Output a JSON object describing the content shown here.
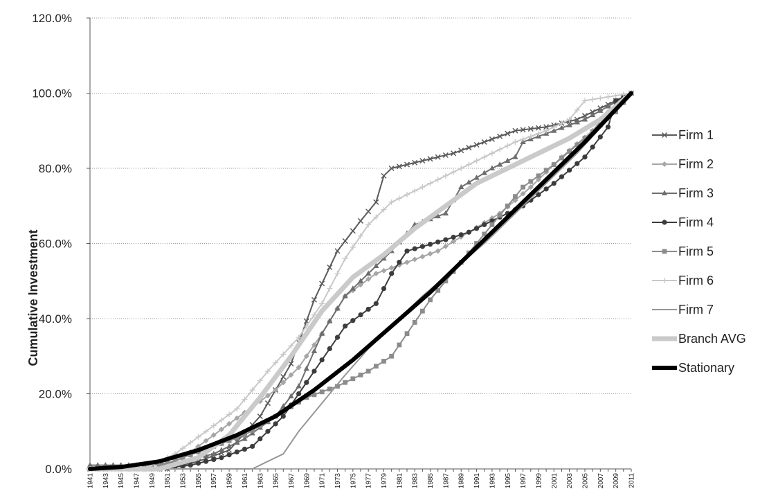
{
  "chart_data": {
    "type": "line",
    "title": "",
    "xlabel": "",
    "ylabel": "Cumulative Investment",
    "x_start": 1941,
    "x_end": 2011,
    "x_tick_labels": [
      "1941",
      "1943",
      "1945",
      "1947",
      "1949",
      "1951",
      "1953",
      "1955",
      "1957",
      "1959",
      "1961",
      "1963",
      "1965",
      "1967",
      "1969",
      "1971",
      "1973",
      "1975",
      "1977",
      "1979",
      "1981",
      "1983",
      "1985",
      "1987",
      "1989",
      "1991",
      "1993",
      "1995",
      "1997",
      "1999",
      "2001",
      "2003",
      "2005",
      "2007",
      "2009",
      "2011"
    ],
    "y_tick_labels": [
      "0.0%",
      "20.0%",
      "40.0%",
      "60.0%",
      "80.0%",
      "100.0%",
      "120.0%"
    ],
    "ylim": [
      0,
      120
    ],
    "grid": "horizontal",
    "legend": "right",
    "series": [
      {
        "name": "Firm 1",
        "color": "#5a5a5a",
        "width": 2,
        "marker": "x",
        "points": [
          [
            1941,
            0
          ],
          [
            1951,
            0
          ],
          [
            1955,
            2
          ],
          [
            1959,
            5
          ],
          [
            1963,
            14
          ],
          [
            1967,
            28
          ],
          [
            1970,
            45
          ],
          [
            1973,
            58
          ],
          [
            1976,
            66
          ],
          [
            1978,
            71
          ],
          [
            1979,
            78
          ],
          [
            1980,
            80
          ],
          [
            1984,
            82
          ],
          [
            1988,
            84
          ],
          [
            1992,
            87
          ],
          [
            1996,
            90
          ],
          [
            2000,
            91
          ],
          [
            2004,
            93
          ],
          [
            2008,
            97
          ],
          [
            2011,
            100
          ]
        ]
      },
      {
        "name": "Firm 2",
        "color": "#a6a6a6",
        "width": 2,
        "marker": "diamond",
        "points": [
          [
            1941,
            0
          ],
          [
            1950,
            0
          ],
          [
            1953,
            3
          ],
          [
            1957,
            9
          ],
          [
            1961,
            15
          ],
          [
            1965,
            21
          ],
          [
            1968,
            27
          ],
          [
            1971,
            36
          ],
          [
            1974,
            46
          ],
          [
            1978,
            52
          ],
          [
            1982,
            55
          ],
          [
            1986,
            58
          ],
          [
            1990,
            63
          ],
          [
            1994,
            68
          ],
          [
            1998,
            75
          ],
          [
            2002,
            83
          ],
          [
            2006,
            90
          ],
          [
            2008,
            95
          ],
          [
            2011,
            100
          ]
        ]
      },
      {
        "name": "Firm 3",
        "color": "#6e6e6e",
        "width": 2,
        "marker": "triangle",
        "points": [
          [
            1941,
            1
          ],
          [
            1949,
            1
          ],
          [
            1953,
            2
          ],
          [
            1957,
            4
          ],
          [
            1961,
            8
          ],
          [
            1965,
            14
          ],
          [
            1968,
            22
          ],
          [
            1971,
            36
          ],
          [
            1974,
            46
          ],
          [
            1977,
            52
          ],
          [
            1980,
            58
          ],
          [
            1983,
            65
          ],
          [
            1987,
            68
          ],
          [
            1989,
            75
          ],
          [
            1993,
            80
          ],
          [
            1996,
            83
          ],
          [
            1997,
            87
          ],
          [
            2001,
            90
          ],
          [
            2005,
            93
          ],
          [
            2011,
            100
          ]
        ]
      },
      {
        "name": "Firm 4",
        "color": "#3c3c3c",
        "width": 2,
        "marker": "circle",
        "points": [
          [
            1941,
            0
          ],
          [
            1950,
            0
          ],
          [
            1954,
            1
          ],
          [
            1958,
            3
          ],
          [
            1962,
            6
          ],
          [
            1966,
            14
          ],
          [
            1969,
            23
          ],
          [
            1971,
            29
          ],
          [
            1974,
            38
          ],
          [
            1978,
            44
          ],
          [
            1980,
            52
          ],
          [
            1982,
            58
          ],
          [
            1987,
            61
          ],
          [
            1990,
            63
          ],
          [
            1993,
            66
          ],
          [
            1997,
            70
          ],
          [
            2001,
            76
          ],
          [
            2005,
            83
          ],
          [
            2008,
            91
          ],
          [
            2009,
            98
          ],
          [
            2011,
            100
          ]
        ]
      },
      {
        "name": "Firm 5",
        "color": "#8c8c8c",
        "width": 2,
        "marker": "square",
        "points": [
          [
            1941,
            0
          ],
          [
            1949,
            0
          ],
          [
            1953,
            3
          ],
          [
            1957,
            6
          ],
          [
            1961,
            9
          ],
          [
            1965,
            14
          ],
          [
            1969,
            19
          ],
          [
            1973,
            22
          ],
          [
            1977,
            26
          ],
          [
            1980,
            30
          ],
          [
            1982,
            36
          ],
          [
            1985,
            45
          ],
          [
            1989,
            55
          ],
          [
            1993,
            65
          ],
          [
            1997,
            75
          ],
          [
            2001,
            81
          ],
          [
            2005,
            88
          ],
          [
            2009,
            95
          ],
          [
            2011,
            100
          ]
        ]
      },
      {
        "name": "Firm 6",
        "color": "#c8c8c8",
        "width": 2,
        "marker": "plus",
        "points": [
          [
            1941,
            0
          ],
          [
            1948,
            0
          ],
          [
            1952,
            4
          ],
          [
            1956,
            10
          ],
          [
            1960,
            16
          ],
          [
            1964,
            26
          ],
          [
            1968,
            35
          ],
          [
            1971,
            44
          ],
          [
            1974,
            56
          ],
          [
            1977,
            65
          ],
          [
            1980,
            71
          ],
          [
            1984,
            75
          ],
          [
            1988,
            79
          ],
          [
            1992,
            83
          ],
          [
            1996,
            87
          ],
          [
            2000,
            90
          ],
          [
            2003,
            93
          ],
          [
            2005,
            98
          ],
          [
            2008,
            99
          ],
          [
            2011,
            100
          ]
        ]
      },
      {
        "name": "Firm 7",
        "color": "#969696",
        "width": 2,
        "marker": "none",
        "points": [
          [
            1941,
            0
          ],
          [
            1962,
            0
          ],
          [
            1964,
            2
          ],
          [
            1966,
            4
          ],
          [
            1968,
            10
          ],
          [
            1970,
            15
          ],
          [
            1972,
            20
          ],
          [
            1974,
            25
          ],
          [
            1977,
            32
          ],
          [
            1980,
            38
          ],
          [
            1984,
            46
          ],
          [
            1988,
            53
          ],
          [
            1992,
            60
          ],
          [
            1996,
            68
          ],
          [
            2000,
            76
          ],
          [
            2004,
            84
          ],
          [
            2008,
            93
          ],
          [
            2011,
            100
          ]
        ]
      },
      {
        "name": "Branch AVG",
        "color": "#cacaca",
        "width": 7,
        "marker": "none",
        "points": [
          [
            1941,
            0
          ],
          [
            1950,
            0
          ],
          [
            1955,
            3
          ],
          [
            1959,
            9
          ],
          [
            1963,
            19
          ],
          [
            1967,
            30
          ],
          [
            1971,
            42
          ],
          [
            1975,
            51
          ],
          [
            1979,
            57
          ],
          [
            1983,
            64
          ],
          [
            1987,
            70
          ],
          [
            1991,
            76
          ],
          [
            1995,
            80
          ],
          [
            1999,
            84
          ],
          [
            2003,
            88
          ],
          [
            2007,
            93
          ],
          [
            2011,
            100
          ]
        ]
      },
      {
        "name": "Stationary",
        "color": "#000000",
        "width": 6,
        "marker": "none",
        "points": [
          [
            1941,
            0
          ],
          [
            1945,
            0.5
          ],
          [
            1950,
            2
          ],
          [
            1955,
            5
          ],
          [
            1960,
            9
          ],
          [
            1965,
            14
          ],
          [
            1970,
            21
          ],
          [
            1975,
            29
          ],
          [
            1980,
            38
          ],
          [
            1985,
            47
          ],
          [
            1990,
            57
          ],
          [
            1995,
            67
          ],
          [
            2000,
            77
          ],
          [
            2005,
            87
          ],
          [
            2011,
            100
          ]
        ]
      }
    ]
  }
}
